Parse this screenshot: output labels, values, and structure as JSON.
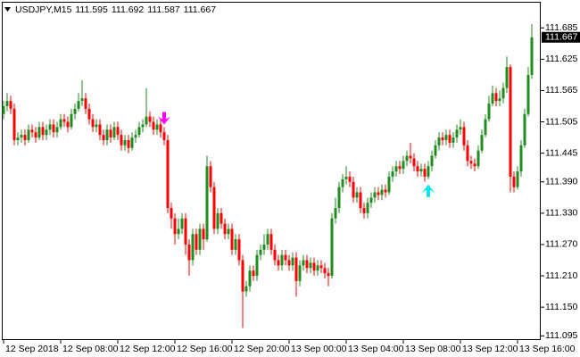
{
  "chart_data": {
    "type": "candlestick",
    "symbol": "USDJPY,M15",
    "open": [
      111.52,
      111.535,
      111.545,
      111.53,
      111.47,
      111.475,
      111.48,
      111.47,
      111.49,
      111.485,
      111.475,
      111.495,
      111.48,
      111.49,
      111.5,
      111.485,
      111.495,
      111.51,
      111.505,
      111.495,
      111.52,
      111.53,
      111.545,
      111.55,
      111.53,
      111.51,
      111.495,
      111.5,
      111.48,
      111.47,
      111.49,
      111.475,
      111.495,
      111.48,
      111.46,
      111.47,
      111.455,
      111.475,
      111.48,
      111.495,
      111.5,
      111.515,
      111.505,
      111.49,
      111.5,
      111.485,
      111.47,
      111.34,
      111.32,
      111.29,
      111.3,
      111.32,
      111.27,
      111.24,
      111.29,
      111.26,
      111.3,
      111.28,
      111.42,
      111.38,
      111.3,
      111.33,
      111.31,
      111.29,
      111.3,
      111.26,
      111.28,
      111.24,
      111.18,
      111.19,
      111.22,
      111.21,
      111.25,
      111.26,
      111.27,
      111.29,
      111.26,
      111.24,
      111.23,
      111.25,
      111.24,
      111.23,
      111.245,
      111.2,
      111.23,
      111.24,
      111.225,
      111.235,
      111.22,
      111.23,
      111.225,
      111.215,
      111.21,
      111.32,
      111.34,
      111.38,
      111.395,
      111.4,
      111.39,
      111.36,
      111.37,
      111.34,
      111.33,
      111.35,
      111.36,
      111.37,
      111.365,
      111.375,
      111.37,
      111.4,
      111.41,
      111.42,
      111.415,
      111.43,
      111.44,
      111.435,
      111.42,
      111.41,
      111.415,
      111.4,
      111.42,
      111.44,
      111.46,
      111.475,
      111.47,
      111.48,
      111.465,
      111.475,
      111.49,
      111.495,
      111.46,
      111.43,
      111.425,
      111.42,
      111.45,
      111.48,
      111.51,
      111.54,
      111.56,
      111.545,
      111.55,
      111.57,
      111.61,
      111.4,
      111.38,
      111.41,
      111.46,
      111.52,
      111.595
    ],
    "high": [
      111.545,
      111.56,
      111.555,
      111.54,
      111.485,
      111.49,
      111.49,
      111.5,
      111.5,
      111.495,
      111.505,
      111.505,
      111.5,
      111.51,
      111.51,
      111.505,
      111.52,
      111.52,
      111.515,
      111.53,
      111.54,
      111.56,
      111.585,
      111.56,
      111.54,
      111.52,
      111.51,
      111.51,
      111.49,
      111.5,
      111.5,
      111.505,
      111.505,
      111.49,
      111.48,
      111.48,
      111.485,
      111.49,
      111.505,
      111.51,
      111.57,
      111.525,
      111.515,
      111.51,
      111.51,
      111.495,
      111.48,
      111.35,
      111.33,
      111.32,
      111.33,
      111.33,
      111.28,
      111.3,
      111.3,
      111.31,
      111.31,
      111.44,
      111.43,
      111.39,
      111.34,
      111.34,
      111.32,
      111.31,
      111.31,
      111.29,
      111.29,
      111.25,
      111.2,
      111.23,
      111.23,
      111.26,
      111.27,
      111.29,
      111.3,
      111.3,
      111.27,
      111.25,
      111.26,
      111.26,
      111.25,
      111.255,
      111.255,
      111.24,
      111.25,
      111.25,
      111.245,
      111.245,
      111.24,
      111.24,
      111.235,
      111.225,
      111.33,
      111.36,
      111.39,
      111.405,
      111.42,
      111.41,
      111.4,
      111.38,
      111.38,
      111.35,
      111.36,
      111.37,
      111.38,
      111.38,
      111.385,
      111.385,
      111.41,
      111.42,
      111.43,
      111.43,
      111.44,
      111.45,
      111.465,
      111.445,
      111.43,
      111.425,
      111.425,
      111.43,
      111.45,
      111.47,
      111.485,
      111.485,
      111.49,
      111.49,
      111.485,
      111.5,
      111.51,
      111.505,
      111.47,
      111.44,
      111.435,
      111.46,
      111.49,
      111.52,
      111.555,
      111.575,
      111.57,
      111.565,
      111.58,
      111.63,
      111.615,
      111.41,
      111.42,
      111.47,
      111.53,
      111.61,
      111.692
    ],
    "low": [
      111.51,
      111.525,
      111.52,
      111.46,
      111.46,
      111.465,
      111.46,
      111.465,
      111.475,
      111.465,
      111.47,
      111.47,
      111.47,
      111.48,
      111.475,
      111.475,
      111.49,
      111.495,
      111.485,
      111.49,
      111.51,
      111.525,
      111.535,
      111.52,
      111.5,
      111.485,
      111.485,
      111.47,
      111.46,
      111.46,
      111.465,
      111.47,
      111.47,
      111.45,
      111.45,
      111.445,
      111.45,
      111.465,
      111.475,
      111.485,
      111.495,
      111.495,
      111.48,
      111.48,
      111.475,
      111.46,
      111.33,
      111.3,
      111.27,
      111.28,
      111.29,
      111.25,
      111.21,
      111.23,
      111.25,
      111.25,
      111.26,
      111.275,
      111.37,
      111.29,
      111.29,
      111.3,
      111.28,
      111.28,
      111.25,
      111.25,
      111.23,
      111.11,
      111.17,
      111.18,
      111.2,
      111.2,
      111.24,
      111.25,
      111.26,
      111.25,
      111.23,
      111.22,
      111.22,
      111.23,
      111.22,
      111.22,
      111.17,
      111.19,
      111.22,
      111.215,
      111.215,
      111.21,
      111.21,
      111.215,
      111.205,
      111.19,
      111.205,
      111.31,
      111.33,
      111.37,
      111.385,
      111.38,
      111.35,
      111.35,
      111.33,
      111.32,
      111.32,
      111.34,
      111.35,
      111.355,
      111.355,
      111.36,
      111.365,
      111.39,
      111.4,
      111.405,
      111.405,
      111.42,
      111.425,
      111.41,
      111.4,
      111.4,
      111.39,
      111.395,
      111.41,
      111.435,
      111.45,
      111.46,
      111.46,
      111.455,
      111.455,
      111.465,
      111.48,
      111.45,
      111.42,
      111.415,
      111.41,
      111.415,
      111.445,
      111.475,
      111.505,
      111.535,
      111.535,
      111.535,
      111.54,
      111.56,
      111.37,
      111.37,
      111.375,
      111.4,
      111.455,
      111.515,
      111.587
    ],
    "close": [
      111.535,
      111.545,
      111.53,
      111.47,
      111.475,
      111.48,
      111.47,
      111.49,
      111.485,
      111.475,
      111.495,
      111.48,
      111.49,
      111.5,
      111.485,
      111.495,
      111.51,
      111.505,
      111.495,
      111.52,
      111.53,
      111.545,
      111.55,
      111.53,
      111.51,
      111.495,
      111.5,
      111.48,
      111.47,
      111.49,
      111.475,
      111.495,
      111.48,
      111.46,
      111.47,
      111.455,
      111.475,
      111.48,
      111.495,
      111.5,
      111.515,
      111.505,
      111.49,
      111.5,
      111.485,
      111.47,
      111.34,
      111.32,
      111.29,
      111.3,
      111.32,
      111.27,
      111.24,
      111.29,
      111.26,
      111.3,
      111.28,
      111.42,
      111.38,
      111.3,
      111.33,
      111.31,
      111.29,
      111.3,
      111.26,
      111.28,
      111.24,
      111.18,
      111.19,
      111.22,
      111.21,
      111.25,
      111.26,
      111.27,
      111.29,
      111.26,
      111.24,
      111.23,
      111.25,
      111.24,
      111.23,
      111.245,
      111.2,
      111.23,
      111.24,
      111.225,
      111.235,
      111.22,
      111.23,
      111.225,
      111.215,
      111.21,
      111.32,
      111.34,
      111.38,
      111.395,
      111.4,
      111.39,
      111.36,
      111.37,
      111.34,
      111.33,
      111.35,
      111.36,
      111.37,
      111.365,
      111.375,
      111.37,
      111.4,
      111.41,
      111.42,
      111.415,
      111.43,
      111.44,
      111.435,
      111.42,
      111.41,
      111.415,
      111.4,
      111.42,
      111.44,
      111.46,
      111.475,
      111.47,
      111.48,
      111.465,
      111.475,
      111.49,
      111.495,
      111.46,
      111.43,
      111.425,
      111.42,
      111.45,
      111.48,
      111.51,
      111.54,
      111.56,
      111.545,
      111.55,
      111.57,
      111.61,
      111.4,
      111.38,
      111.41,
      111.46,
      111.52,
      111.595,
      111.667
    ],
    "up_color": "#228b22",
    "down_color": "#ff0000",
    "xlim": [
      -0.5,
      150.5
    ],
    "xticks": [
      {
        "value": 0,
        "label": "12 Sep 2018"
      },
      {
        "value": 16,
        "label": "12 Sep 08:00"
      },
      {
        "value": 32,
        "label": "12 Sep 12:00"
      },
      {
        "value": 48,
        "label": "12 Sep 16:00"
      },
      {
        "value": 64,
        "label": "12 Sep 20:00"
      },
      {
        "value": 80,
        "label": "13 Sep 00:00"
      },
      {
        "value": 96,
        "label": "13 Sep 04:00"
      },
      {
        "value": 112,
        "label": "13 Sep 08:00"
      },
      {
        "value": 128,
        "label": "13 Sep 12:00"
      },
      {
        "value": 144,
        "label": "13 Sep 16:00"
      }
    ],
    "ylim": [
      111.087,
      111.735
    ],
    "yticks": [
      111.685,
      111.625,
      111.565,
      111.505,
      111.445,
      {
        "value": 111.39,
        "label": "111.390"
      },
      {
        "value": 111.33,
        "label": "111.330"
      },
      {
        "value": 111.27,
        "label": "111.270"
      },
      {
        "value": 111.21,
        "label": "111.210"
      },
      {
        "value": 111.15,
        "label": "111.150"
      },
      111.095
    ],
    "arrows": [
      {
        "index": 45,
        "value": 111.5,
        "direction": "down",
        "color": "#ff00ff"
      },
      {
        "index": 119,
        "value": 111.385,
        "direction": "up",
        "color": "#00e5ee"
      }
    ]
  }
}
